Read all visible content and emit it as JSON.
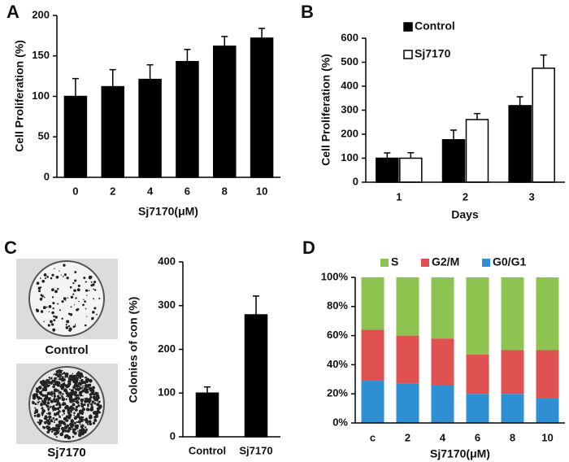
{
  "chart_data": [
    {
      "type": "bar",
      "panel": "A",
      "xlabel": "Sj7170(μM)",
      "ylabel": "Cell Proliferation (%)",
      "categories": [
        "0",
        "2",
        "4",
        "6",
        "8",
        "10"
      ],
      "series": [
        {
          "color": "#000000",
          "values": [
            100,
            112,
            121,
            143,
            162,
            172
          ],
          "errors": [
            22,
            21,
            18,
            15,
            12,
            12
          ]
        }
      ],
      "ylim": [
        0,
        200
      ],
      "yticks": [
        0,
        50,
        100,
        150,
        200
      ]
    },
    {
      "type": "bar",
      "panel": "B",
      "xlabel": "Days",
      "ylabel": "Cell Proliferation (%)",
      "categories": [
        "1",
        "2",
        "3"
      ],
      "series": [
        {
          "name": "Control",
          "color": "#000000",
          "values": [
            100,
            177,
            319
          ],
          "errors": [
            22,
            40,
            37
          ]
        },
        {
          "name": "Sj7170",
          "color": "#ffffff",
          "values": [
            100,
            261,
            475
          ],
          "errors": [
            23,
            25,
            55
          ]
        }
      ],
      "ylim": [
        0,
        600
      ],
      "yticks": [
        0,
        100,
        200,
        300,
        400,
        500,
        600
      ]
    },
    {
      "type": "bar",
      "panel": "C",
      "ylabel": "Colonies of con (%)",
      "image_labels": [
        "Control",
        "Sj7170"
      ],
      "categories": [
        "Control",
        "Sj7170"
      ],
      "series": [
        {
          "color": "#000000",
          "values": [
            100,
            279
          ],
          "errors": [
            14,
            43
          ]
        }
      ],
      "ylim": [
        0,
        400
      ],
      "yticks": [
        0,
        100,
        200,
        300,
        400
      ]
    },
    {
      "type": "stacked_bar",
      "panel": "D",
      "xlabel": "Sj7170(μM)",
      "categories": [
        "c",
        "2",
        "4",
        "6",
        "8",
        "10"
      ],
      "series": [
        {
          "name": "S",
          "color": "#8dc34f",
          "values": [
            36,
            40,
            42,
            53,
            50,
            50
          ]
        },
        {
          "name": "G2/M",
          "color": "#e05252",
          "values": [
            35,
            33,
            32,
            27,
            30,
            33
          ]
        },
        {
          "name": "G0/G1",
          "color": "#2e8fd3",
          "values": [
            29,
            27,
            26,
            20,
            20,
            17
          ]
        }
      ],
      "ylim": [
        0,
        100
      ],
      "yticks": [
        {
          "value": 0,
          "label": "0%"
        },
        {
          "value": 20,
          "label": "20%"
        },
        {
          "value": 40,
          "label": "40%"
        },
        {
          "value": 60,
          "label": "60%"
        },
        {
          "value": 80,
          "label": "80%"
        },
        {
          "value": 100,
          "label": "100%"
        }
      ]
    }
  ]
}
